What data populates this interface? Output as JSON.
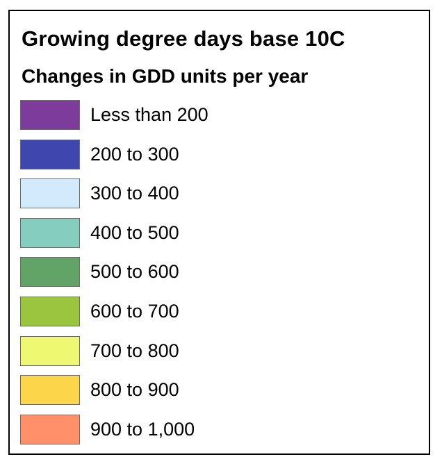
{
  "legend": {
    "title": "Growing degree days base 10C",
    "subtitle": "Changes in GDD units per year",
    "items": [
      {
        "label": "Less than 200",
        "color": "#7d3b9b"
      },
      {
        "label": "200 to 300",
        "color": "#3f47ae"
      },
      {
        "label": "300 to 400",
        "color": "#d2eafb"
      },
      {
        "label": "400 to 500",
        "color": "#84cdbf"
      },
      {
        "label": "500 to 600",
        "color": "#62a465"
      },
      {
        "label": "600 to 700",
        "color": "#9bc53f"
      },
      {
        "label": "700 to 800",
        "color": "#eef872"
      },
      {
        "label": "800 to 900",
        "color": "#fdd54b"
      },
      {
        "label": "900 to 1,000",
        "color": "#ff906a"
      }
    ]
  }
}
